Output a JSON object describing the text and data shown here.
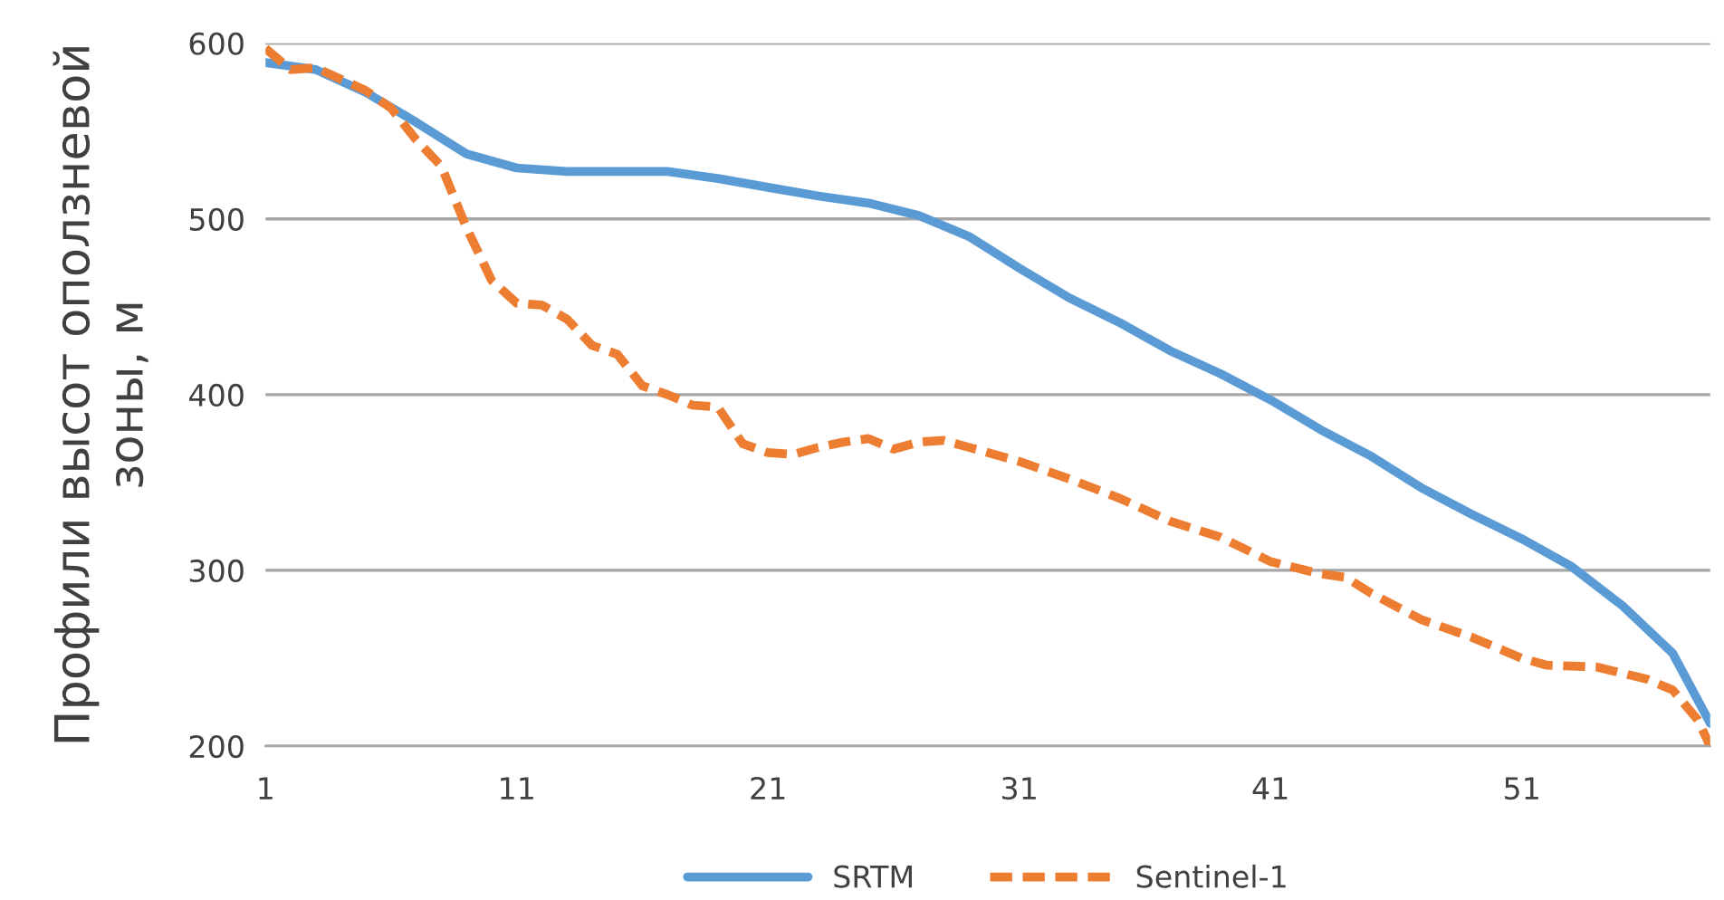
{
  "chart_data": {
    "type": "line",
    "ylabel": "Профили высот оползневой\nзоны, м",
    "xlim": [
      1,
      58.5
    ],
    "xticks": [
      1,
      11,
      21,
      31,
      41,
      51
    ],
    "ylim": [
      200,
      600
    ],
    "yticks": [
      200,
      300,
      400,
      500,
      600
    ],
    "grid": "y",
    "legend": "bottom",
    "series": [
      {
        "name": "SRTM",
        "color": "#5b9bd5",
        "line_style": "solid",
        "x": [
          1,
          3,
          5,
          7,
          9,
          11,
          13,
          15,
          17,
          19,
          21,
          23,
          25,
          27,
          29,
          31,
          33,
          35,
          37,
          39,
          41,
          43,
          45,
          47,
          49,
          51,
          53,
          55,
          57,
          58.5
        ],
        "values": [
          589,
          585,
          572,
          555,
          537,
          529,
          527,
          527,
          527,
          523,
          518,
          513,
          509,
          502,
          490,
          472,
          455,
          441,
          425,
          412,
          397,
          380,
          365,
          347,
          332,
          318,
          302,
          280,
          253,
          213
        ]
      },
      {
        "name": "Sentinel-1",
        "color": "#ed7d31",
        "line_style": "dashed",
        "x": [
          1,
          2,
          3,
          5,
          6,
          7,
          8,
          9,
          10,
          11,
          12,
          13,
          14,
          15,
          16,
          17,
          18,
          19,
          20,
          21,
          22,
          23,
          24,
          25,
          26,
          27,
          28,
          29,
          31,
          33,
          35,
          37,
          39,
          41,
          43,
          44,
          45,
          47,
          49,
          51,
          52,
          54,
          56,
          57,
          58,
          58.5
        ],
        "values": [
          597,
          585,
          586,
          573,
          563,
          545,
          530,
          495,
          465,
          452,
          451,
          443,
          428,
          423,
          405,
          400,
          394,
          393,
          372,
          367,
          366,
          370,
          373,
          375,
          369,
          373,
          374,
          370,
          362,
          352,
          341,
          328,
          319,
          305,
          298,
          296,
          287,
          272,
          262,
          250,
          246,
          245,
          238,
          232,
          215,
          200
        ]
      }
    ]
  }
}
